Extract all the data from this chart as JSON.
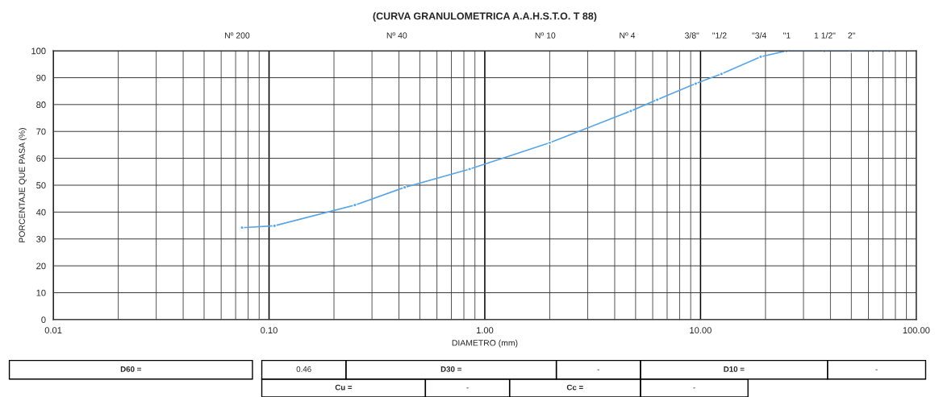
{
  "chart_data": {
    "type": "line",
    "title": "(CURVA GRANULOMETRICA A.A.H.S.T.O. T 88)",
    "xlabel": "DIAMETRO (mm)",
    "ylabel": "PORCENTAJE QUE PASA (%)",
    "x": [
      0.075,
      0.106,
      0.25,
      0.425,
      0.85,
      2.0,
      4.75,
      6.3,
      9.5,
      12.5,
      19,
      25,
      37.5,
      50,
      63,
      75
    ],
    "series": [
      {
        "color": "#5aa5e6",
        "values": [
          34.2,
          34.9,
          42.6,
          49.2,
          56.0,
          65.8,
          77.6,
          81.8,
          87.8,
          91.4,
          97.8,
          100,
          100,
          100,
          100,
          100
        ]
      }
    ],
    "log": "x",
    "xlim": [
      0.01,
      100
    ],
    "xticks": [
      {
        "value": 0.01,
        "label": "0.01"
      },
      {
        "value": 0.1,
        "label": "0.10"
      },
      {
        "value": 1,
        "label": "1.00"
      },
      {
        "value": 10,
        "label": "10.00"
      },
      {
        "value": 100,
        "label": "100.00"
      }
    ],
    "ylim": [
      0,
      100
    ],
    "yticks": [
      0,
      10,
      20,
      30,
      40,
      50,
      60,
      70,
      80,
      90,
      100
    ],
    "grid": true,
    "marker": "circle",
    "line_style": "solid",
    "annotations": [
      "Nº 200",
      "Nº 40",
      "Nº 10",
      "Nº 4",
      "3/8\"",
      "\"1/2",
      "\"3/4",
      "\"1",
      "1 1/2\"",
      "2\"",
      "D60 =",
      "0.46",
      "D30 =",
      "-",
      "D10 =",
      "-",
      "Cu =",
      "-",
      "Cc =",
      "-"
    ]
  }
}
